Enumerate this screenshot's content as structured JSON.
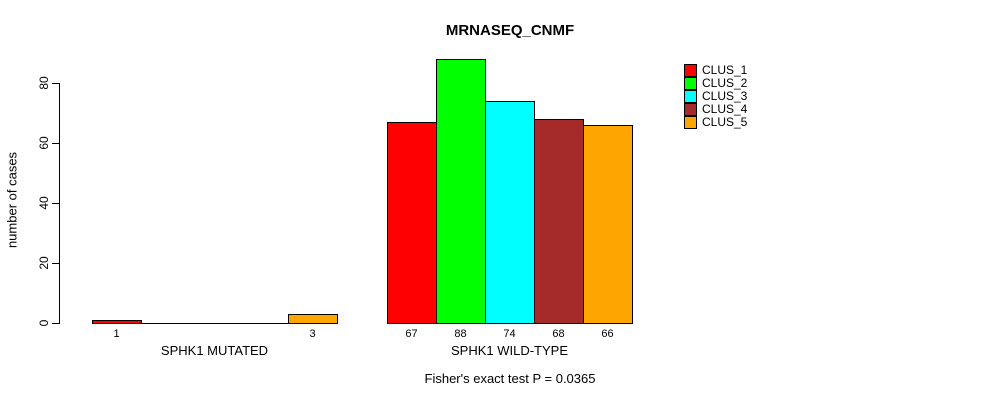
{
  "title": "MRNASEQ_CNMF",
  "footer": "Fisher's exact test P = 0.0365",
  "chart_data": {
    "type": "bar",
    "title": "MRNASEQ_CNMF",
    "subtitle": "Fisher's exact test P = 0.0365",
    "ylabel": "number of cases",
    "xlabel": "",
    "ylim": [
      0,
      88
    ],
    "yticks": [
      0,
      20,
      40,
      60,
      80
    ],
    "grid": false,
    "legend_position": "top-right",
    "series": [
      {
        "name": "CLUS_1",
        "color": "#FF0000"
      },
      {
        "name": "CLUS_2",
        "color": "#00FF00"
      },
      {
        "name": "CLUS_3",
        "color": "#00FFFF"
      },
      {
        "name": "CLUS_4",
        "color": "#A52A2A"
      },
      {
        "name": "CLUS_5",
        "color": "#FFA500"
      }
    ],
    "groups": [
      {
        "label": "SPHK1 MUTATED",
        "values": [
          1,
          0,
          0,
          0,
          3
        ],
        "bar_labels": [
          "1",
          "",
          "",
          "",
          "3"
        ]
      },
      {
        "label": "SPHK1 WILD-TYPE",
        "values": [
          67,
          88,
          74,
          68,
          66
        ],
        "bar_labels": [
          "67",
          "88",
          "74",
          "68",
          "66"
        ]
      }
    ]
  }
}
